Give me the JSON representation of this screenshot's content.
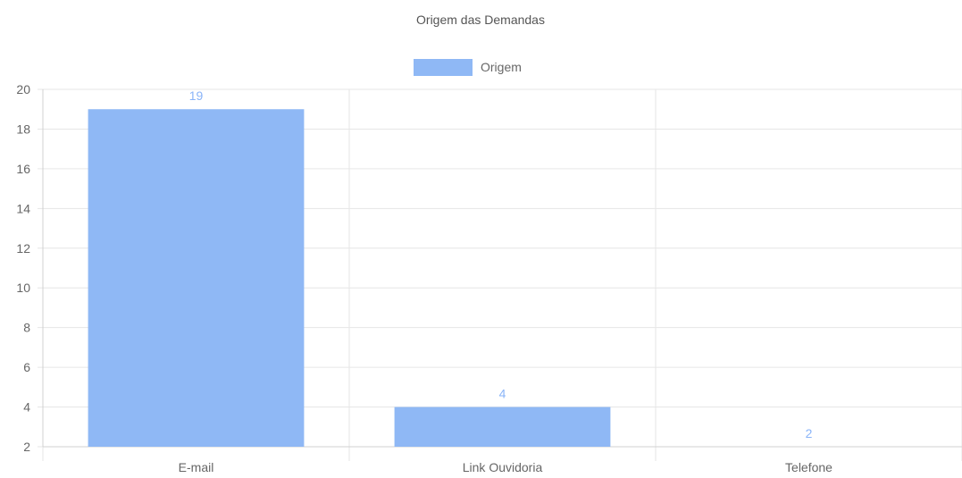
{
  "chart_data": {
    "type": "bar",
    "title": "Origem das Demandas",
    "categories": [
      "E-mail",
      "Link Ouvidoria",
      "Telefone"
    ],
    "series": [
      {
        "name": "Origem",
        "values": [
          19,
          4,
          2
        ]
      }
    ],
    "data_labels": [
      "19",
      "4",
      "2"
    ],
    "ylim": [
      2,
      20
    ],
    "yticks": [
      2,
      4,
      6,
      8,
      10,
      12,
      14,
      16,
      18,
      20
    ],
    "ytick_labels": [
      "2",
      "4",
      "6",
      "8",
      "10",
      "12",
      "14",
      "16",
      "18",
      "20"
    ],
    "grid": true,
    "legend_position": "top-center",
    "colors": {
      "bar": "#8fb8f5",
      "data_label": "#8ab4f8"
    }
  }
}
